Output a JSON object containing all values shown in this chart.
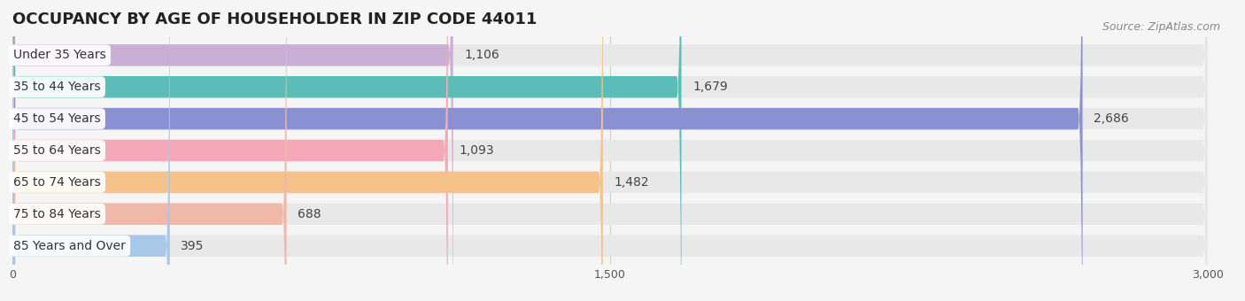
{
  "title": "OCCUPANCY BY AGE OF HOUSEHOLDER IN ZIP CODE 44011",
  "source": "Source: ZipAtlas.com",
  "categories": [
    "Under 35 Years",
    "35 to 44 Years",
    "45 to 54 Years",
    "55 to 64 Years",
    "65 to 74 Years",
    "75 to 84 Years",
    "85 Years and Over"
  ],
  "values": [
    1106,
    1679,
    2686,
    1093,
    1482,
    688,
    395
  ],
  "bar_colors": [
    "#c9aed6",
    "#5bbcb8",
    "#8b8fd4",
    "#f4a8b8",
    "#f5c28a",
    "#f0b8a8",
    "#a8c8e8"
  ],
  "xlim": [
    0,
    3000
  ],
  "xticks": [
    0,
    1500,
    3000
  ],
  "xtick_labels": [
    "0",
    "1,500",
    "3,000"
  ],
  "background_color": "#f5f5f5",
  "bar_bg_color": "#e8e8e8",
  "title_fontsize": 13,
  "label_fontsize": 10,
  "value_fontsize": 10
}
